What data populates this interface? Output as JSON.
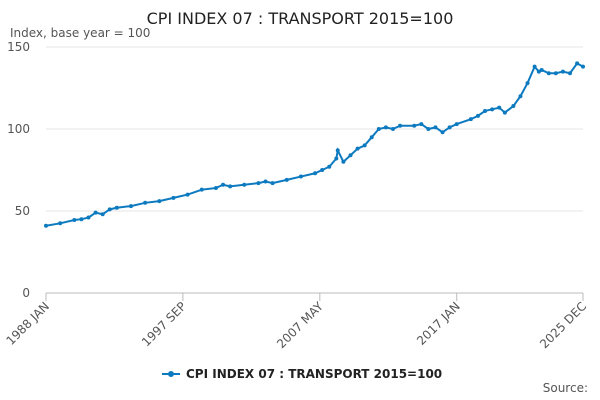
{
  "chart_data": {
    "type": "line",
    "title": "CPI INDEX 07 : TRANSPORT 2015=100",
    "subtitle": "Index, base year = 100",
    "source": "Source:",
    "x": [
      1988.0,
      1989.0,
      1990.0,
      1990.5,
      1991.0,
      1991.5,
      1992.0,
      1992.5,
      1993.0,
      1994.0,
      1995.0,
      1996.0,
      1997.0,
      1998.0,
      1999.0,
      2000.0,
      2000.5,
      2001.0,
      2002.0,
      2003.0,
      2003.5,
      2004.0,
      2005.0,
      2006.0,
      2007.0,
      2007.5,
      2008.0,
      2008.5,
      2008.6,
      2009.0,
      2009.5,
      2010.0,
      2010.5,
      2011.0,
      2011.5,
      2012.0,
      2012.5,
      2013.0,
      2014.0,
      2014.5,
      2015.0,
      2015.5,
      2016.0,
      2016.5,
      2017.0,
      2018.0,
      2018.5,
      2019.0,
      2019.5,
      2020.0,
      2020.4,
      2021.0,
      2021.5,
      2022.0,
      2022.5,
      2022.8,
      2023.0,
      2023.5,
      2024.0,
      2024.5,
      2025.0,
      2025.5,
      2025.917
    ],
    "series": [
      {
        "name": "CPI INDEX 07 : TRANSPORT 2015=100",
        "color": "#0d7ac0",
        "values": [
          41,
          42.5,
          44.5,
          45,
          46,
          49,
          48,
          51,
          52,
          53,
          55,
          56,
          58,
          60,
          63,
          64,
          66,
          65,
          66,
          67,
          68,
          67,
          69,
          71,
          73,
          75,
          77,
          82,
          87,
          80,
          84,
          88,
          90,
          95,
          100,
          101,
          100,
          102,
          102,
          103,
          100,
          101,
          98,
          101,
          103,
          106,
          108,
          111,
          112,
          113,
          110,
          114,
          120,
          128,
          138,
          135,
          136,
          134,
          134,
          135,
          134,
          140,
          138
        ]
      }
    ],
    "xlim": [
      1988.0,
      2025.917
    ],
    "xticks": [
      {
        "value": 1988.0,
        "label": "1988 JAN"
      },
      {
        "value": 1997.667,
        "label": "1997 SEP"
      },
      {
        "value": 2007.333,
        "label": "2007 MAY"
      },
      {
        "value": 2017.0,
        "label": "2017 JAN"
      },
      {
        "value": 2025.917,
        "label": "2025 DEC"
      }
    ],
    "ylim": [
      0,
      150
    ],
    "yticks": [
      0,
      50,
      100,
      150
    ],
    "grid": true
  }
}
